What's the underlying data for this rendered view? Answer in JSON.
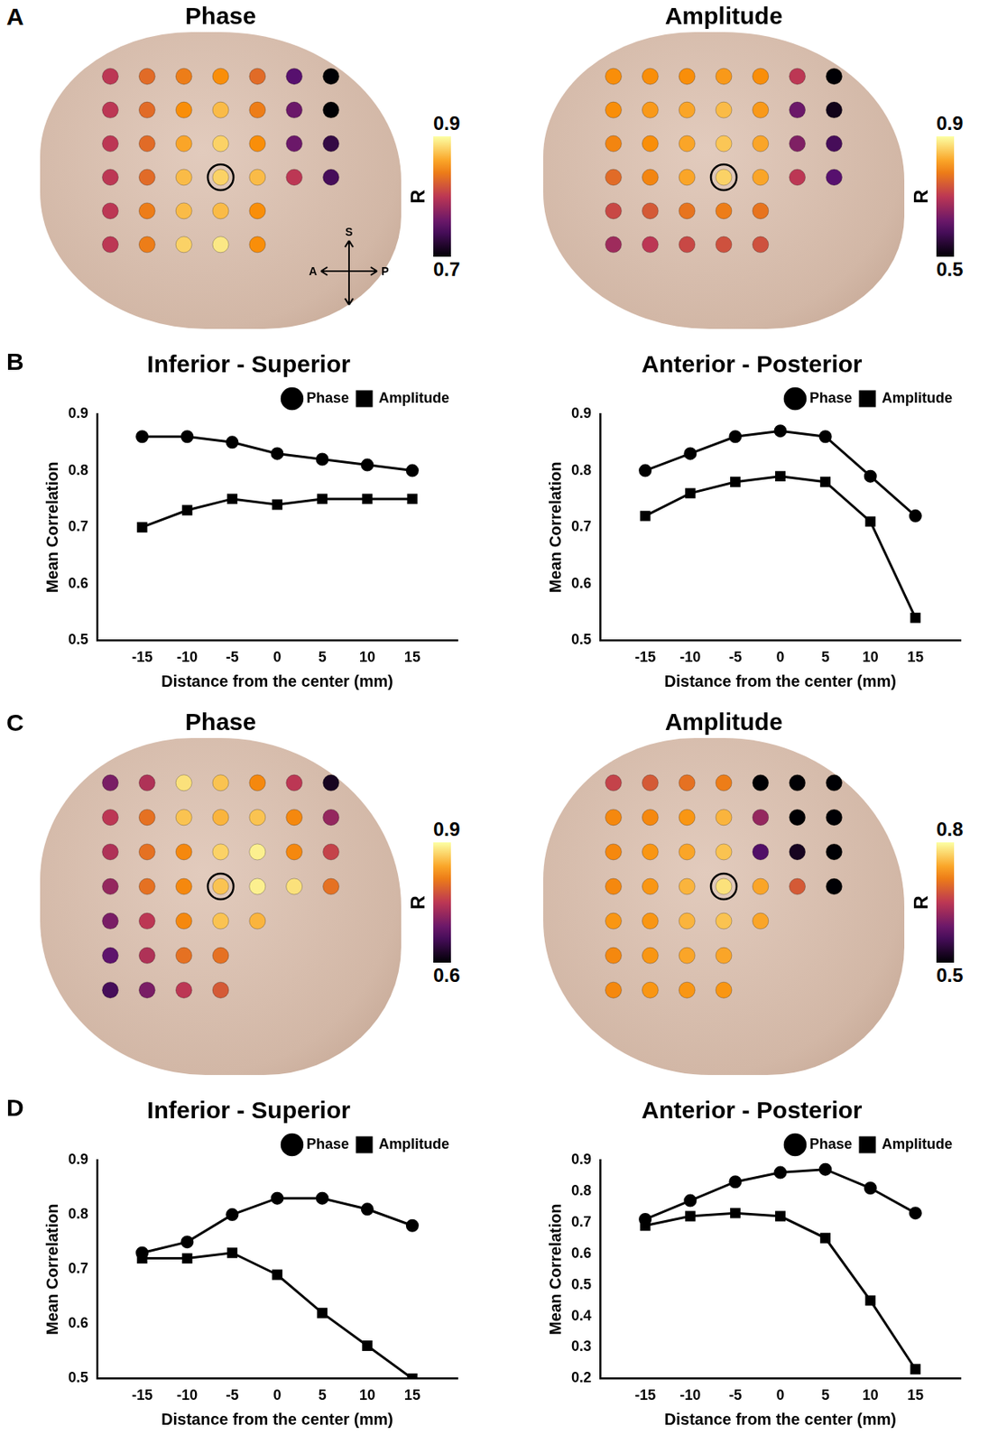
{
  "chart_data": [
    {
      "panel": "A",
      "type": "heatmap",
      "title": "Phase",
      "tick_labels": false,
      "cells": [
        [
          0.8,
          0.83,
          0.84,
          0.85,
          0.83,
          0.75,
          0.7
        ],
        [
          0.8,
          0.83,
          0.85,
          0.87,
          0.84,
          0.76,
          0.7
        ],
        [
          0.8,
          0.83,
          0.86,
          0.88,
          0.85,
          0.76,
          0.73
        ],
        [
          0.8,
          0.83,
          0.87,
          0.88,
          0.87,
          0.8,
          0.74
        ],
        [
          0.8,
          0.84,
          0.87,
          0.87,
          0.85,
          null,
          null
        ],
        [
          0.8,
          0.84,
          0.88,
          0.89,
          0.85,
          null,
          null
        ]
      ],
      "highlight": {
        "row": 3,
        "col": 3
      },
      "colorbar": {
        "label": "R",
        "range": [
          0.7,
          0.9
        ],
        "ticks": [
          0.7,
          0.9
        ]
      },
      "orientation_labels": {
        "superior": "S",
        "anterior": "A",
        "posterior": "P"
      }
    },
    {
      "type": "heatmap",
      "title": "Amplitude",
      "tick_labels": false,
      "cells": [
        [
          0.8,
          0.8,
          0.8,
          0.81,
          0.8,
          0.7,
          0.5
        ],
        [
          0.8,
          0.81,
          0.82,
          0.84,
          0.81,
          0.62,
          0.52
        ],
        [
          0.79,
          0.8,
          0.82,
          0.85,
          0.82,
          0.64,
          0.58
        ],
        [
          0.76,
          0.79,
          0.82,
          0.86,
          0.82,
          0.7,
          0.6
        ],
        [
          0.72,
          0.74,
          0.77,
          0.78,
          0.77,
          null,
          null
        ],
        [
          0.67,
          0.7,
          0.72,
          0.73,
          0.73,
          null,
          null
        ]
      ],
      "highlight": {
        "row": 3,
        "col": 3
      },
      "colorbar": {
        "label": "R",
        "range": [
          0.5,
          0.9
        ],
        "ticks": [
          0.5,
          0.9
        ]
      }
    },
    {
      "panel": "B",
      "type": "line",
      "title": "Inferior - Superior",
      "x": [
        -15,
        -10,
        -5,
        0,
        5,
        10,
        15
      ],
      "xlim": [
        -20,
        20
      ],
      "xticks": [
        -15,
        -10,
        -5,
        0,
        5,
        10,
        15
      ],
      "ylim": [
        0.5,
        0.9
      ],
      "yticks": [
        0.5,
        0.6,
        0.7,
        0.8,
        0.9
      ],
      "x_label": "Distance from the center (mm)",
      "y_label": "Mean Correlation",
      "legend": "top-right",
      "grid": false,
      "series": [
        {
          "name": "Phase",
          "color": "#000000",
          "marker": "circle",
          "values": [
            0.86,
            0.86,
            0.85,
            0.83,
            0.82,
            0.81,
            0.8
          ]
        },
        {
          "name": "Amplitude",
          "color": "#000000",
          "marker": "square",
          "values": [
            0.7,
            0.73,
            0.75,
            0.74,
            0.75,
            0.75,
            0.75
          ]
        }
      ]
    },
    {
      "type": "line",
      "title": "Anterior - Posterior",
      "x": [
        -15,
        -10,
        -5,
        0,
        5,
        10,
        15
      ],
      "xlim": [
        -20,
        20
      ],
      "xticks": [
        -15,
        -10,
        -5,
        0,
        5,
        10,
        15
      ],
      "ylim": [
        0.5,
        0.9
      ],
      "yticks": [
        0.5,
        0.6,
        0.7,
        0.8,
        0.9
      ],
      "x_label": "Distance from the center (mm)",
      "y_label": "Mean Correlation",
      "legend": "top-right",
      "grid": false,
      "series": [
        {
          "name": "Phase",
          "color": "#000000",
          "marker": "circle",
          "values": [
            0.8,
            0.83,
            0.86,
            0.87,
            0.86,
            0.79,
            0.72
          ]
        },
        {
          "name": "Amplitude",
          "color": "#000000",
          "marker": "square",
          "values": [
            0.72,
            0.76,
            0.78,
            0.79,
            0.78,
            0.71,
            0.54
          ]
        }
      ]
    },
    {
      "panel": "C",
      "type": "heatmap",
      "title": "Phase",
      "tick_labels": false,
      "cells": [
        [
          0.7,
          0.74,
          0.88,
          0.86,
          0.82,
          0.75,
          0.62
        ],
        [
          0.75,
          0.8,
          0.86,
          0.85,
          0.86,
          0.82,
          0.72
        ],
        [
          0.74,
          0.8,
          0.82,
          0.87,
          0.89,
          0.82,
          0.76
        ],
        [
          0.72,
          0.8,
          0.82,
          0.86,
          0.89,
          0.88,
          0.8
        ],
        [
          0.7,
          0.75,
          0.82,
          0.86,
          0.85,
          null,
          null
        ],
        [
          0.68,
          0.74,
          0.8,
          0.8,
          null,
          null,
          null
        ],
        [
          0.66,
          0.7,
          0.75,
          0.78,
          null,
          null,
          null
        ]
      ],
      "highlight": {
        "row": 3,
        "col": 3
      },
      "colorbar": {
        "label": "R",
        "range": [
          0.6,
          0.9
        ],
        "ticks": [
          0.6,
          0.9
        ]
      }
    },
    {
      "type": "heatmap",
      "title": "Amplitude",
      "tick_labels": false,
      "cells": [
        [
          0.66,
          0.68,
          0.7,
          0.71,
          0.5,
          0.5,
          0.5
        ],
        [
          0.72,
          0.72,
          0.73,
          0.75,
          0.62,
          0.5,
          0.5
        ],
        [
          0.72,
          0.73,
          0.74,
          0.76,
          0.57,
          0.52,
          0.5
        ],
        [
          0.72,
          0.73,
          0.75,
          0.78,
          0.74,
          0.68,
          0.5
        ],
        [
          0.73,
          0.73,
          0.75,
          0.76,
          0.74,
          null,
          null
        ],
        [
          0.72,
          0.73,
          0.74,
          0.74,
          null,
          null,
          null
        ],
        [
          0.72,
          0.73,
          0.73,
          0.73,
          null,
          null,
          null
        ]
      ],
      "highlight": {
        "row": 3,
        "col": 3
      },
      "colorbar": {
        "label": "R",
        "range": [
          0.5,
          0.8
        ],
        "ticks": [
          0.5,
          0.8
        ]
      }
    },
    {
      "panel": "D",
      "type": "line",
      "title": "Inferior - Superior",
      "x": [
        -15,
        -10,
        -5,
        0,
        5,
        10,
        15
      ],
      "xlim": [
        -20,
        20
      ],
      "xticks": [
        -15,
        -10,
        -5,
        0,
        5,
        10,
        15
      ],
      "ylim": [
        0.5,
        0.9
      ],
      "yticks": [
        0.5,
        0.6,
        0.7,
        0.8,
        0.9
      ],
      "x_label": "Distance from the center (mm)",
      "y_label": "Mean Correlation",
      "legend": "top-right",
      "grid": false,
      "series": [
        {
          "name": "Phase",
          "color": "#000000",
          "marker": "circle",
          "values": [
            0.73,
            0.75,
            0.8,
            0.83,
            0.83,
            0.81,
            0.78
          ]
        },
        {
          "name": "Amplitude",
          "color": "#000000",
          "marker": "square",
          "values": [
            0.72,
            0.72,
            0.73,
            0.69,
            0.62,
            0.56,
            0.5
          ]
        }
      ]
    },
    {
      "type": "line",
      "title": "Anterior - Posterior",
      "x": [
        -15,
        -10,
        -5,
        0,
        5,
        10,
        15
      ],
      "xlim": [
        -20,
        20
      ],
      "xticks": [
        -15,
        -10,
        -5,
        0,
        5,
        10,
        15
      ],
      "ylim": [
        0.2,
        0.9
      ],
      "yticks": [
        0.2,
        0.3,
        0.4,
        0.5,
        0.6,
        0.7,
        0.8,
        0.9
      ],
      "x_label": "Distance from the center (mm)",
      "y_label": "Mean Correlation",
      "legend": "top-right",
      "grid": false,
      "series": [
        {
          "name": "Phase",
          "color": "#000000",
          "marker": "circle",
          "values": [
            0.71,
            0.77,
            0.83,
            0.86,
            0.87,
            0.81,
            0.73
          ]
        },
        {
          "name": "Amplitude",
          "color": "#000000",
          "marker": "square",
          "values": [
            0.69,
            0.72,
            0.73,
            0.72,
            0.65,
            0.45,
            0.23
          ]
        }
      ]
    }
  ]
}
